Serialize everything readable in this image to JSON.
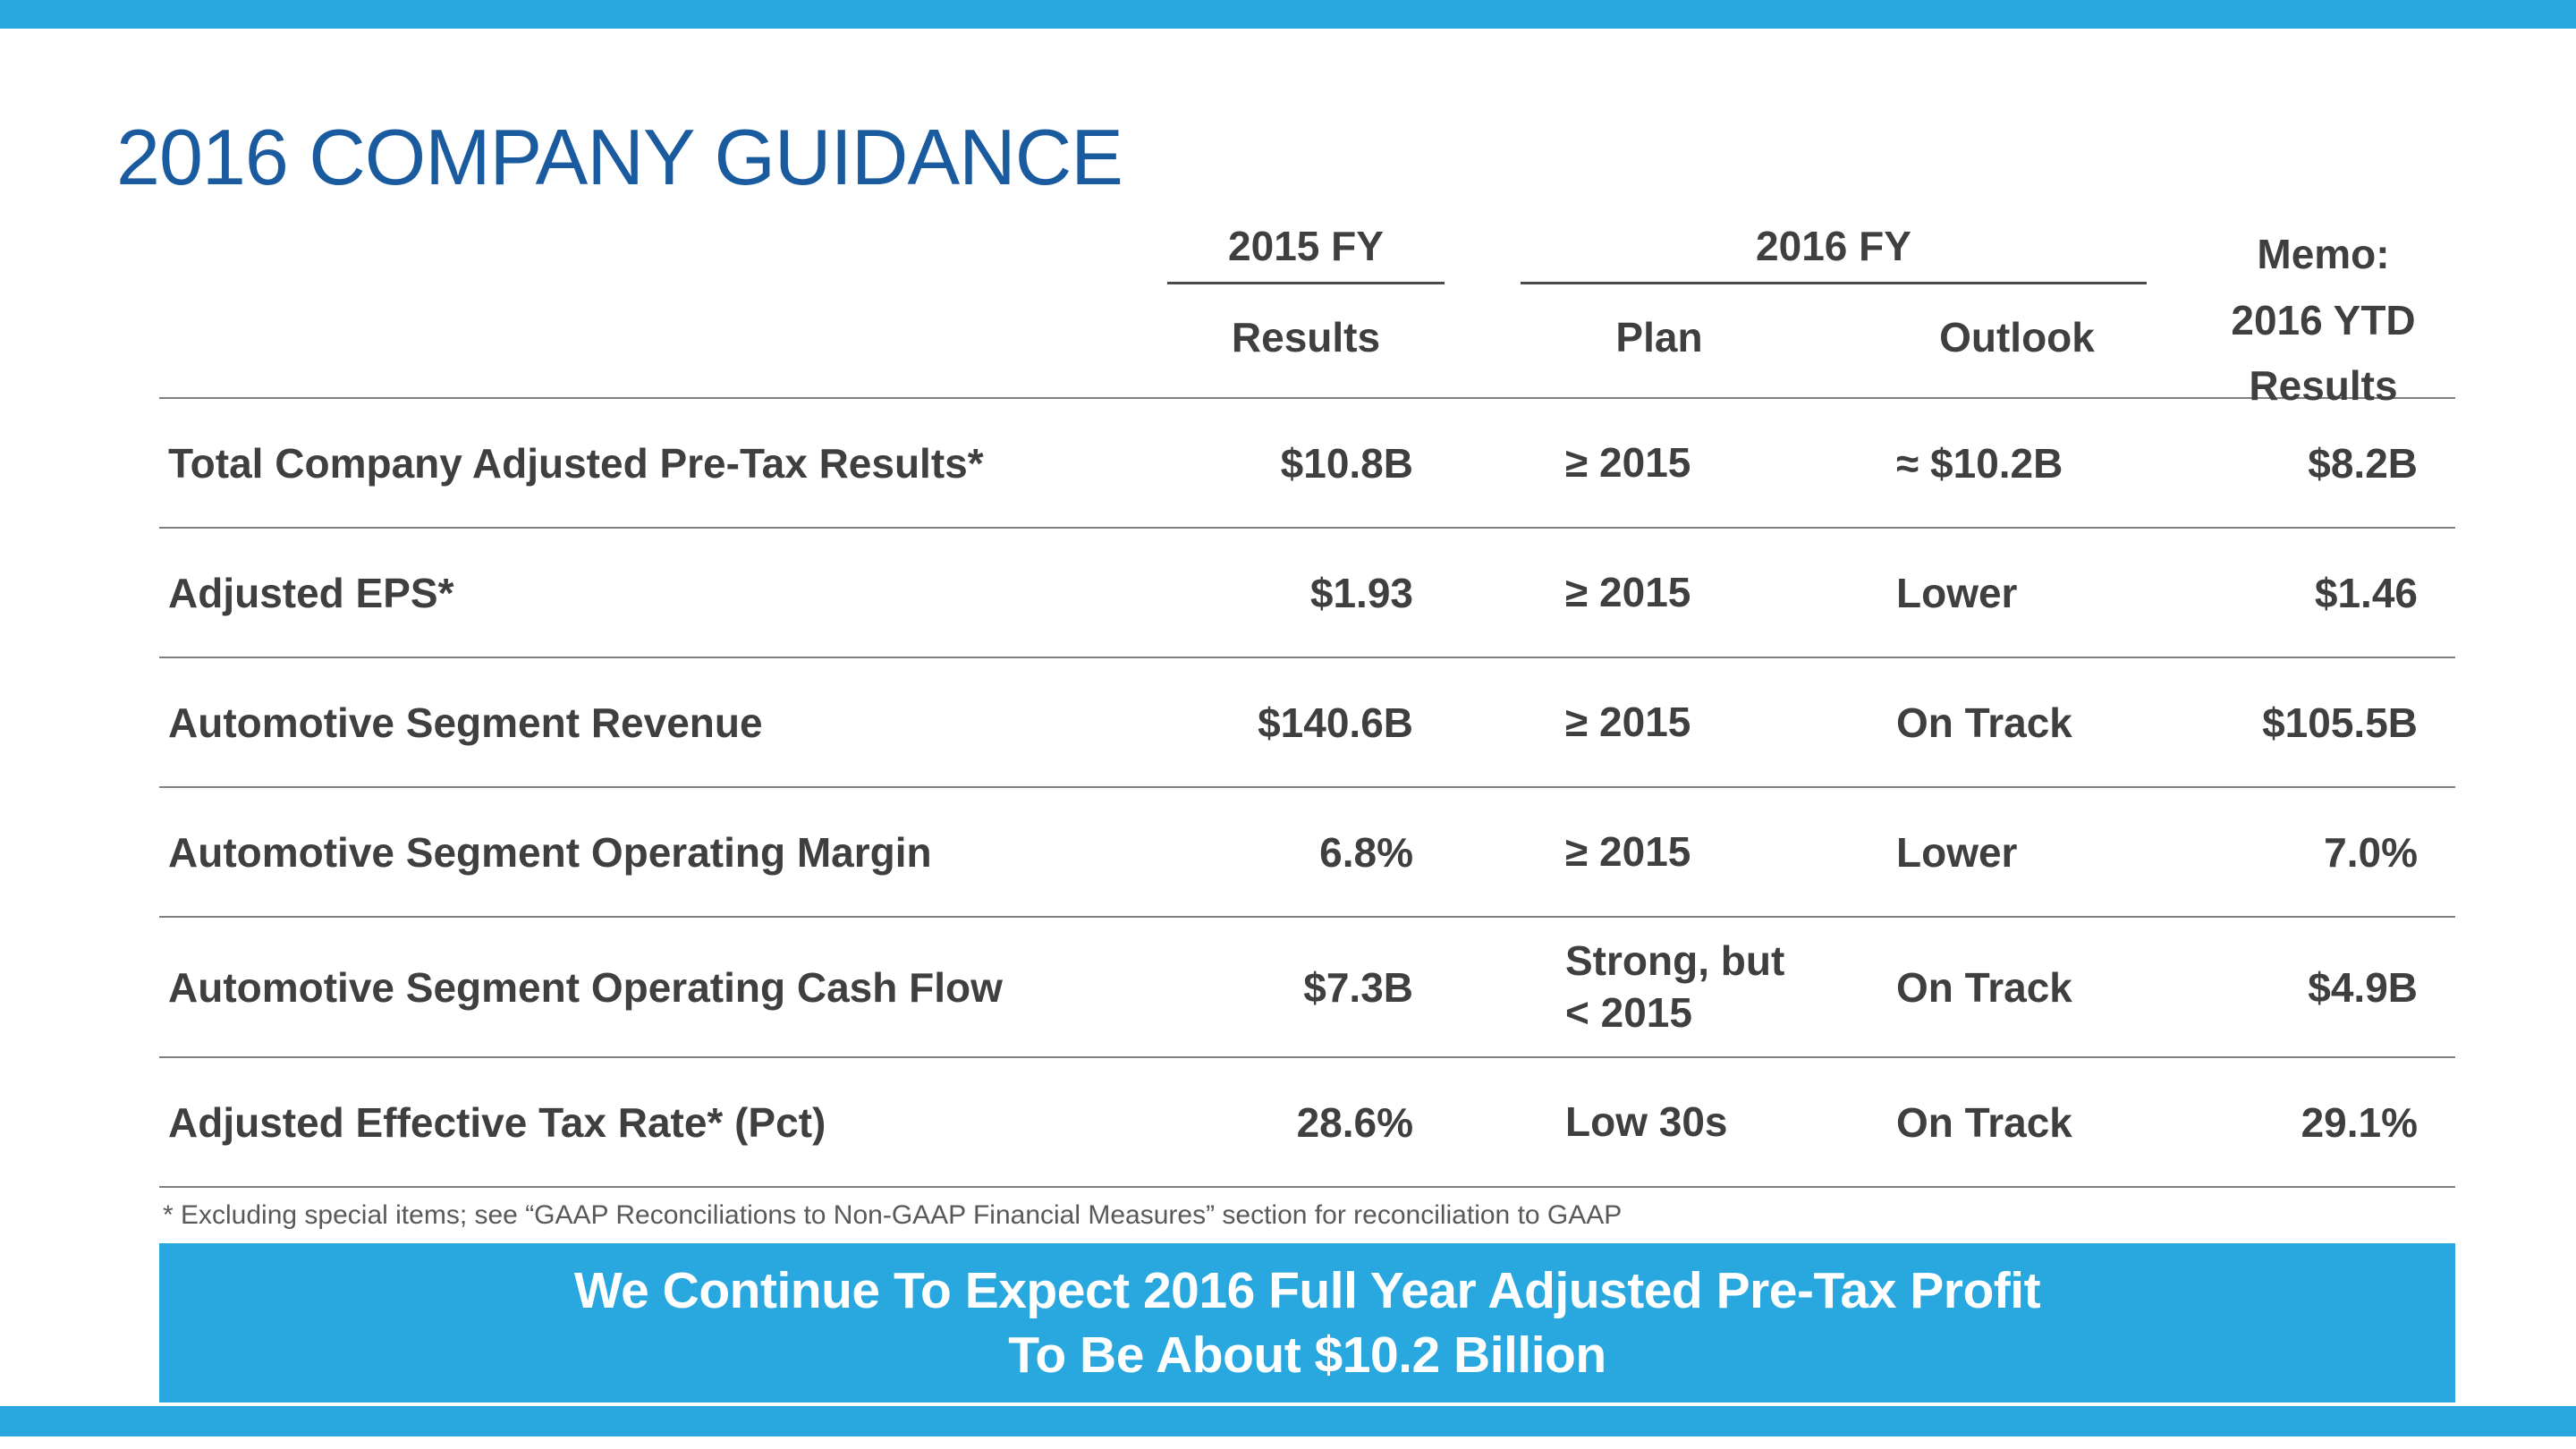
{
  "colors": {
    "accent": "#29a8e0",
    "title": "#1a5a9e",
    "text": "#3f3f3f",
    "line": "#808080",
    "footnote": "#595959"
  },
  "slide": {
    "title": "2016 COMPANY GUIDANCE"
  },
  "table": {
    "group_headers": {
      "fy2015": "2015 FY",
      "fy2016": "2016 FY",
      "memo_line1": "Memo:",
      "memo_line2": "2016 YTD",
      "memo_line3": "Results"
    },
    "sub_headers": {
      "results": "Results",
      "plan": "Plan",
      "outlook": "Outlook"
    },
    "rows": [
      {
        "label": "Total Company Adjusted Pre-Tax Results*",
        "results": "$10.8B",
        "plan": "≥ 2015",
        "outlook": "≈ $10.2B",
        "ytd": "$8.2B"
      },
      {
        "label": "Adjusted EPS*",
        "results": "$1.93",
        "plan": "≥ 2015",
        "outlook": "Lower",
        "ytd": "$1.46"
      },
      {
        "label": "Automotive Segment Revenue",
        "results": "$140.6B",
        "plan": "≥ 2015",
        "outlook": "On Track",
        "ytd": "$105.5B"
      },
      {
        "label": "Automotive Segment Operating Margin",
        "results": "6.8%",
        "plan": "≥ 2015",
        "outlook": "Lower",
        "ytd": "7.0%"
      },
      {
        "label": "Automotive Segment Operating Cash Flow",
        "results": "$7.3B",
        "plan": "Strong, but\n< 2015",
        "outlook": "On Track",
        "ytd": "$4.9B"
      },
      {
        "label": "Adjusted Effective Tax Rate* (Pct)",
        "results": "28.6%",
        "plan": "Low 30s",
        "outlook": "On Track",
        "ytd": "29.1%"
      }
    ]
  },
  "footnote": "*  Excluding special items; see “GAAP Reconciliations to Non-GAAP Financial Measures” section for reconciliation to GAAP",
  "banner": {
    "line1": "We Continue To Expect 2016 Full Year Adjusted Pre-Tax Profit",
    "line2": "To Be About $10.2 Billion"
  }
}
